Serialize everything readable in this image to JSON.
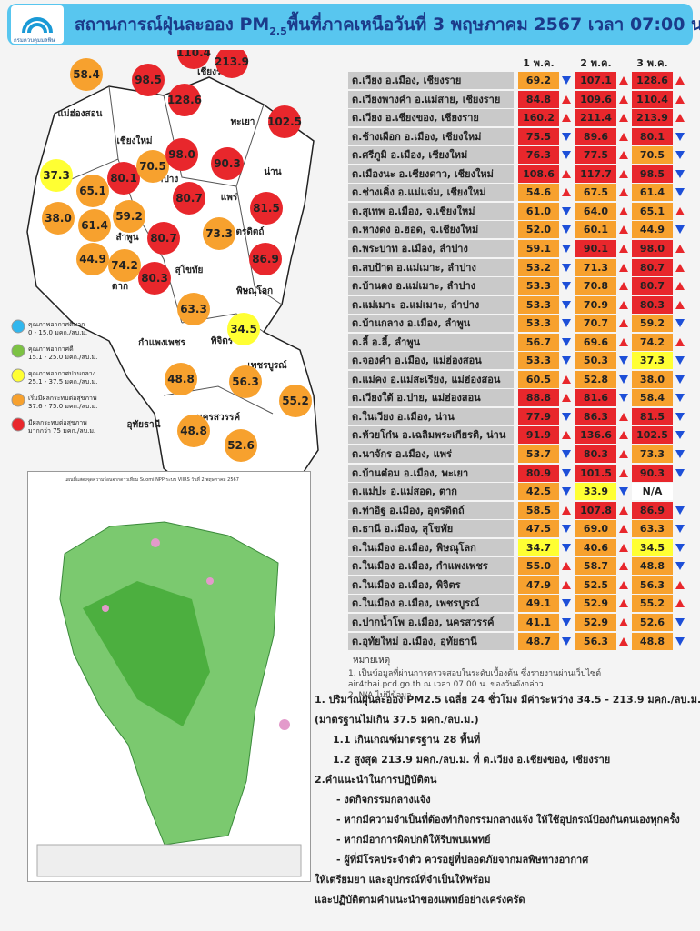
{
  "header": {
    "logo_text": "กรมควบคุมมลพิษ",
    "title_parts": [
      "สถานการณ์ฝุ่นละออง PM",
      "2.5",
      "พื้นที่ภาคเหนือวันที่ 3 พฤษภาคม 2567 เวลา 07:00 น."
    ]
  },
  "legend": [
    {
      "label": "คุณภาพอากาศดีมาก",
      "range": "0 - 15.0 มคก./ลบ.ม.",
      "color": "#31b7ee",
      "max": 15
    },
    {
      "label": "คุณภาพอากาศดี",
      "range": "15.1 - 25.0 มคก./ลบ.ม.",
      "color": "#7cc243",
      "max": 25
    },
    {
      "label": "คุณภาพอากาศปานกลาง",
      "range": "25.1 - 37.5 มคก./ลบ.ม.",
      "color": "#ffff33",
      "max": 37.5
    },
    {
      "label": "เริ่มมีผลกระทบต่อสุขภาพ",
      "range": "37.6 - 75.0 มคก./ลบ.ม.",
      "color": "#f7a12e",
      "max": 75
    },
    {
      "label": "มีผลกระทบต่อสุขภาพ",
      "range": "มากกว่า 75 มคก./ลบ.ม.",
      "color": "#e8272c"
    }
  ],
  "map": {
    "provinces": [
      "เชียงราย",
      "แม่ฮ่องสอน",
      "เชียงใหม่",
      "พะเยา",
      "น่าน",
      "ลำพูน",
      "ลำปาง",
      "แพร่",
      "อุตรดิตถ์",
      "สุโขทัย",
      "ตาก",
      "พิษณุโลก",
      "กำแพงเพชร",
      "พิจิตร",
      "เพชรบูรณ์",
      "นครสวรรค์",
      "อุทัยธานี"
    ],
    "bubbles": [
      "110.4",
      "213.9",
      "98.5",
      "58.4",
      "128.6",
      "102.5",
      "37.3",
      "80.1",
      "70.5",
      "98.0",
      "90.3",
      "65.1",
      "38.0",
      "61.4",
      "59.2",
      "80.7",
      "81.5",
      "80.7",
      "73.3",
      "44.9",
      "74.2",
      "80.3",
      "86.9",
      "63.3",
      "34.5",
      "48.8",
      "56.3",
      "55.2",
      "52.6",
      "48.8"
    ]
  },
  "satellite": {
    "title": "แผนที่แสดงจุดความร้อนจากดาวเทียม Suomi NPP ระบบ VIIRS วันที่ 2 พฤษภาคม 2567"
  },
  "table": {
    "columns": [
      "1 พ.ค.",
      "2 พ.ค.",
      "3 พ.ค."
    ],
    "rows": [
      {
        "station": "ต.เวียง อ.เมือง, เชียงราย",
        "values": [
          "69.2",
          "107.1",
          "128.6"
        ],
        "trends": [
          "down",
          "up",
          "up"
        ]
      },
      {
        "station": "ต.เวียงพางคำ อ.แม่สาย, เชียงราย",
        "values": [
          "84.8",
          "109.6",
          "110.4"
        ],
        "trends": [
          "up",
          "up",
          "up"
        ]
      },
      {
        "station": "ต.เวียง อ.เชียงของ, เชียงราย",
        "values": [
          "160.2",
          "211.4",
          "213.9"
        ],
        "trends": [
          "up",
          "up",
          "up"
        ]
      },
      {
        "station": "ต.ช้างเผือก อ.เมือง, เชียงใหม่",
        "values": [
          "75.5",
          "89.6",
          "80.1"
        ],
        "trends": [
          "down",
          "up",
          "down"
        ]
      },
      {
        "station": "ต.ศรีภูมิ อ.เมือง, เชียงใหม่",
        "values": [
          "76.3",
          "77.5",
          "70.5"
        ],
        "trends": [
          "down",
          "up",
          "down"
        ]
      },
      {
        "station": "ต.เมืองนะ อ.เชียงดาว, เชียงใหม่",
        "values": [
          "108.6",
          "117.7",
          "98.5"
        ],
        "trends": [
          "up",
          "up",
          "down"
        ]
      },
      {
        "station": "ต.ช่างเคิ่ง อ.แม่แจ่ม, เชียงใหม่",
        "values": [
          "54.6",
          "67.5",
          "61.4"
        ],
        "trends": [
          "up",
          "up",
          "down"
        ]
      },
      {
        "station": "ต.สุเทพ  อ.เมือง, จ.เชียงใหม่",
        "values": [
          "61.0",
          "64.0",
          "65.1"
        ],
        "trends": [
          "down",
          "up",
          "up"
        ]
      },
      {
        "station": "ต.หางดง อ.ฮอด, จ.เชียงใหม่",
        "values": [
          "52.0",
          "60.1",
          "44.9"
        ],
        "trends": [
          "down",
          "up",
          "down"
        ]
      },
      {
        "station": "ต.พระบาท อ.เมือง, ลำปาง",
        "values": [
          "59.1",
          "90.1",
          "98.0"
        ],
        "trends": [
          "down",
          "up",
          "up"
        ]
      },
      {
        "station": "ต.สบป้าด อ.แม่เมาะ, ลำปาง",
        "values": [
          "53.2",
          "71.3",
          "80.7"
        ],
        "trends": [
          "down",
          "up",
          "up"
        ]
      },
      {
        "station": "ต.บ้านดง อ.แม่เมาะ, ลำปาง",
        "values": [
          "53.3",
          "70.8",
          "80.7"
        ],
        "trends": [
          "down",
          "up",
          "up"
        ]
      },
      {
        "station": "ต.แม่เมาะ อ.แม่เมาะ, ลำปาง",
        "values": [
          "53.3",
          "70.9",
          "80.3"
        ],
        "trends": [
          "down",
          "up",
          "up"
        ]
      },
      {
        "station": "ต.บ้านกลาง อ.เมือง, ลำพูน",
        "values": [
          "53.3",
          "70.7",
          "59.2"
        ],
        "trends": [
          "down",
          "up",
          "down"
        ]
      },
      {
        "station": "ต.ลี้ อ.ลี้, ลำพูน",
        "values": [
          "56.7",
          "69.6",
          "74.2"
        ],
        "trends": [
          "down",
          "up",
          "up"
        ]
      },
      {
        "station": "ต.จองคำ อ.เมือง, แม่ฮ่องสอน",
        "values": [
          "53.3",
          "50.3",
          "37.3"
        ],
        "trends": [
          "down",
          "down",
          "down"
        ]
      },
      {
        "station": "ต.แม่คง อ.แม่สะเรียง, แม่ฮ่องสอน",
        "values": [
          "60.5",
          "52.8",
          "38.0"
        ],
        "trends": [
          "up",
          "down",
          "down"
        ]
      },
      {
        "station": "ต.เวียงใต้ อ.ปาย, แม่ฮ่องสอน",
        "values": [
          "88.8",
          "81.6",
          "58.4"
        ],
        "trends": [
          "up",
          "down",
          "down"
        ]
      },
      {
        "station": "ต.ในเวียง อ.เมือง, น่าน",
        "values": [
          "77.9",
          "86.3",
          "81.5"
        ],
        "trends": [
          "down",
          "up",
          "down"
        ]
      },
      {
        "station": "ต.ห้วยโก๋น อ.เฉลิมพระเกียรติ, น่าน",
        "values": [
          "91.9",
          "136.6",
          "102.5"
        ],
        "trends": [
          "up",
          "up",
          "down"
        ]
      },
      {
        "station": "ต.นาจักร อ.เมือง, แพร่",
        "values": [
          "53.7",
          "80.3",
          "73.3"
        ],
        "trends": [
          "down",
          "up",
          "down"
        ]
      },
      {
        "station": "ต.บ้านต๋อม อ.เมือง, พะเยา",
        "values": [
          "80.9",
          "101.5",
          "90.3"
        ],
        "trends": [
          "down",
          "up",
          "down"
        ]
      },
      {
        "station": "ต.แม่ปะ อ.แม่สอด, ตาก",
        "values": [
          "42.5",
          "33.9",
          "N/A"
        ],
        "trends": [
          "down",
          "down",
          null
        ]
      },
      {
        "station": "ต.ท่าอิฐ อ.เมือง, อุตรดิตถ์",
        "values": [
          "58.5",
          "107.8",
          "86.9"
        ],
        "trends": [
          "up",
          "up",
          "down"
        ]
      },
      {
        "station": "ต.ธานี อ.เมือง, สุโขทัย",
        "values": [
          "47.5",
          "69.0",
          "63.3"
        ],
        "trends": [
          "down",
          "up",
          "down"
        ]
      },
      {
        "station": "ต.ในเมือง อ.เมือง, พิษณุโลก",
        "values": [
          "34.7",
          "40.6",
          "34.5"
        ],
        "trends": [
          "down",
          "up",
          "down"
        ]
      },
      {
        "station": "ต.ในเมือง อ.เมือง, กำแพงเพชร",
        "values": [
          "55.0",
          "58.7",
          "48.8"
        ],
        "trends": [
          "up",
          "up",
          "down"
        ]
      },
      {
        "station": "ต.ในเมือง อ.เมือง, พิจิตร",
        "values": [
          "47.9",
          "52.5",
          "56.3"
        ],
        "trends": [
          "up",
          "up",
          "up"
        ]
      },
      {
        "station": "ต.ในเมือง อ.เมือง, เพชรบูรณ์",
        "values": [
          "49.1",
          "52.9",
          "55.2"
        ],
        "trends": [
          "down",
          "up",
          "up"
        ]
      },
      {
        "station": "ต.ปากน้ำโพ อ.เมือง, นครสวรรค์",
        "values": [
          "41.1",
          "52.9",
          "52.6"
        ],
        "trends": [
          "down",
          "up",
          "down"
        ]
      },
      {
        "station": "ต.อุทัยใหม่ อ.เมือง, อุทัยธานี",
        "values": [
          "48.7",
          "56.3",
          "48.8"
        ],
        "trends": [
          "down",
          "up",
          "down"
        ]
      }
    ]
  },
  "notes": {
    "title": "หมายเหตุ",
    "lines": [
      "1. เป็นข้อมูลที่ผ่านการตรวจสอบในระดับเบื้องต้น ซึ่งรายงานผ่านเว็บไซต์",
      "air4thai.pcd.go.th ณ เวลา 07:00 น. ของวันดังกล่าว",
      "2. N/A ไม่มีข้อมูล"
    ]
  },
  "summary": [
    "1. ปริมาณฝุ่นละออง PM2.5 เฉลี่ย 24 ชั่วโมง มีค่าระหว่าง 34.5 - 213.9 มคก./ลบ.ม.",
    "(มาตรฐานไม่เกิน 37.5 มคก./ลบ.ม.)",
    "1.1 เกินเกณฑ์มาตรฐาน 28 พื้นที่",
    "1.2 สูงสุด 213.9 มคก./ลบ.ม. ที่ ต.เวียง อ.เชียงของ, เชียงราย",
    "2.คำแนะนำในการปฏิบัติตน",
    "- งดกิจกรรมกลางแจ้ง",
    "- หากมีความจำเป็นที่ต้องทำกิจกรรมกลางแจ้ง ให้ใช้อุปกรณ์ป้องกันตนเองทุกครั้ง",
    "- หากมีอาการผิดปกติให้รีบพบแพทย์",
    "- ผู้ที่มีโรคประจำตัว ควรอยู่ที่ปลอดภัยจากมลพิษทางอากาศ",
    "ให้เตรียมยา และอุปกรณ์ที่จำเป็นให้พร้อม",
    "และปฏิบัติตามคำแนะนำของแพทย์อย่างเคร่งครัด"
  ]
}
